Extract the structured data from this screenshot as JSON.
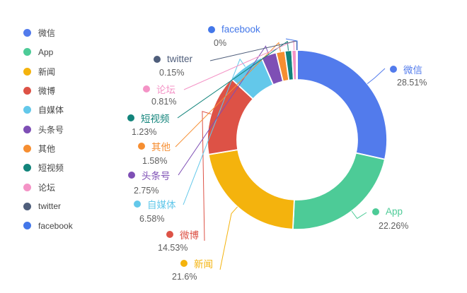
{
  "chart_data": {
    "type": "pie",
    "subtype": "donut",
    "title": "",
    "legend_position": "left",
    "start_angle_deg": 0,
    "direction": "clockwise",
    "series": [
      {
        "name": "微信",
        "value": 28.51,
        "label": "28.51%",
        "color": "#527BEC"
      },
      {
        "name": "App",
        "value": 22.26,
        "label": "22.26%",
        "color": "#4DCB97"
      },
      {
        "name": "新闻",
        "value": 21.6,
        "label": "21.6%",
        "color": "#F4B30D"
      },
      {
        "name": "微博",
        "value": 14.53,
        "label": "14.53%",
        "color": "#DD5246"
      },
      {
        "name": "自媒体",
        "value": 6.58,
        "label": "6.58%",
        "color": "#63C8EA"
      },
      {
        "name": "头条号",
        "value": 2.75,
        "label": "2.75%",
        "color": "#7E4FB5"
      },
      {
        "name": "其他",
        "value": 1.58,
        "label": "1.58%",
        "color": "#F68E31"
      },
      {
        "name": "短视频",
        "value": 1.23,
        "label": "1.23%",
        "color": "#12847B"
      },
      {
        "name": "论坛",
        "value": 0.81,
        "label": "0.81%",
        "color": "#F493C6"
      },
      {
        "name": "twitter",
        "value": 0.15,
        "label": "0.15%",
        "color": "#4F5E7B"
      },
      {
        "name": "facebook",
        "value": 0,
        "label": "0%",
        "color": "#4377E9"
      }
    ]
  },
  "legend": {
    "items": [
      "微信",
      "App",
      "新闻",
      "微博",
      "自媒体",
      "头条号",
      "其他",
      "短视频",
      "论坛",
      "twitter",
      "facebook"
    ]
  },
  "colors": {
    "background": "#ffffff",
    "legend_text": "#464646",
    "percent_text": "#5e5e5e",
    "slice_border": "#ffffff"
  }
}
